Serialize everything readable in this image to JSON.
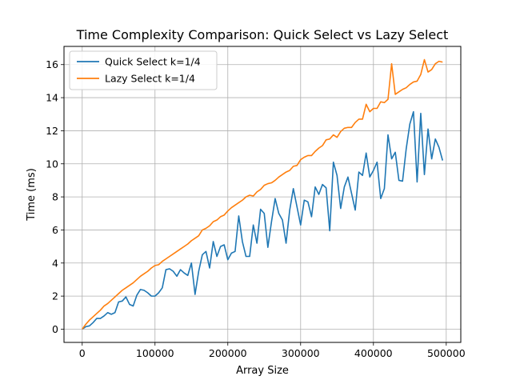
{
  "chart_data": {
    "type": "line",
    "title": "Time Complexity Comparison: Quick Select vs Lazy Select",
    "xlabel": "Array Size",
    "ylabel": "Time (ms)",
    "xlim": [
      -25000,
      520000
    ],
    "ylim": [
      -0.8,
      17.1
    ],
    "xticks": [
      0,
      100000,
      200000,
      300000,
      400000,
      500000
    ],
    "xtick_labels": [
      "0",
      "100000",
      "200000",
      "300000",
      "400000",
      "500000"
    ],
    "yticks": [
      0,
      2,
      4,
      6,
      8,
      10,
      12,
      14,
      16
    ],
    "ytick_labels": [
      "0",
      "2",
      "4",
      "6",
      "8",
      "10",
      "12",
      "14",
      "16"
    ],
    "grid": true,
    "legend_position": "upper-left",
    "series": [
      {
        "name": "Quick Select k=1/4",
        "color": "#1f77b4",
        "x": [
          0,
          5000,
          10000,
          15000,
          20000,
          25000,
          30000,
          35000,
          40000,
          45000,
          50000,
          55000,
          60000,
          65000,
          70000,
          75000,
          80000,
          85000,
          90000,
          95000,
          100000,
          105000,
          110000,
          115000,
          120000,
          125000,
          130000,
          135000,
          140000,
          145000,
          150000,
          155000,
          160000,
          165000,
          170000,
          175000,
          180000,
          185000,
          190000,
          195000,
          200000,
          205000,
          210000,
          215000,
          220000,
          225000,
          230000,
          235000,
          240000,
          245000,
          250000,
          255000,
          260000,
          265000,
          270000,
          275000,
          280000,
          285000,
          290000,
          295000,
          300000,
          305000,
          310000,
          315000,
          320000,
          325000,
          330000,
          335000,
          340000,
          345000,
          350000,
          355000,
          360000,
          365000,
          370000,
          375000,
          380000,
          385000,
          390000,
          395000,
          400000,
          405000,
          410000,
          415000,
          420000,
          425000,
          430000,
          435000,
          440000,
          445000,
          450000,
          455000,
          460000,
          465000,
          470000,
          475000,
          480000,
          485000,
          490000,
          495000
        ],
        "values": [
          0.0,
          0.15,
          0.2,
          0.4,
          0.65,
          0.65,
          0.8,
          1.0,
          0.9,
          1.0,
          1.65,
          1.7,
          1.95,
          1.5,
          1.4,
          2.05,
          2.4,
          2.35,
          2.2,
          2.0,
          2.0,
          2.2,
          2.5,
          3.6,
          3.65,
          3.5,
          3.2,
          3.6,
          3.4,
          3.25,
          4.0,
          2.1,
          3.5,
          4.5,
          4.7,
          3.7,
          5.3,
          4.4,
          5.0,
          5.1,
          4.2,
          4.6,
          4.7,
          6.85,
          5.3,
          4.4,
          4.4,
          6.3,
          5.2,
          7.25,
          7.0,
          4.95,
          6.5,
          7.9,
          7.0,
          6.6,
          5.2,
          7.2,
          8.5,
          7.4,
          6.3,
          7.8,
          7.7,
          6.8,
          8.6,
          8.15,
          8.75,
          8.55,
          5.95,
          10.1,
          9.3,
          7.3,
          8.6,
          9.2,
          8.2,
          7.2,
          9.5,
          9.3,
          10.65,
          9.2,
          9.6,
          10.1,
          7.9,
          8.5,
          11.75,
          10.3,
          10.7,
          9.0,
          8.95,
          10.9,
          12.4,
          13.15,
          8.9,
          13.05,
          9.35,
          12.1,
          10.3,
          11.5,
          11.0,
          10.2
        ]
      },
      {
        "name": "Lazy Select k=1/4",
        "color": "#ff7f0e",
        "x": [
          0,
          5000,
          10000,
          15000,
          20000,
          25000,
          30000,
          35000,
          40000,
          45000,
          50000,
          55000,
          60000,
          65000,
          70000,
          75000,
          80000,
          85000,
          90000,
          95000,
          100000,
          105000,
          110000,
          115000,
          120000,
          125000,
          130000,
          135000,
          140000,
          145000,
          150000,
          155000,
          160000,
          165000,
          170000,
          175000,
          180000,
          185000,
          190000,
          195000,
          200000,
          205000,
          210000,
          215000,
          220000,
          225000,
          230000,
          235000,
          240000,
          245000,
          250000,
          255000,
          260000,
          265000,
          270000,
          275000,
          280000,
          285000,
          290000,
          295000,
          300000,
          305000,
          310000,
          315000,
          320000,
          325000,
          330000,
          335000,
          340000,
          345000,
          350000,
          355000,
          360000,
          365000,
          370000,
          375000,
          380000,
          385000,
          390000,
          395000,
          400000,
          405000,
          410000,
          415000,
          420000,
          425000,
          430000,
          435000,
          440000,
          445000,
          450000,
          455000,
          460000,
          465000,
          470000,
          475000,
          480000,
          485000,
          490000,
          495000
        ],
        "values": [
          0.0,
          0.3,
          0.55,
          0.75,
          0.95,
          1.15,
          1.4,
          1.55,
          1.75,
          1.95,
          2.15,
          2.35,
          2.5,
          2.65,
          2.8,
          3.0,
          3.2,
          3.35,
          3.5,
          3.7,
          3.85,
          3.9,
          4.1,
          4.25,
          4.4,
          4.55,
          4.7,
          4.85,
          5.0,
          5.15,
          5.35,
          5.5,
          5.65,
          6.0,
          6.1,
          6.25,
          6.5,
          6.6,
          6.8,
          6.9,
          7.15,
          7.35,
          7.5,
          7.65,
          7.8,
          8.0,
          8.1,
          8.05,
          8.3,
          8.45,
          8.7,
          8.8,
          8.85,
          9.0,
          9.2,
          9.35,
          9.5,
          9.6,
          9.85,
          9.9,
          10.25,
          10.4,
          10.5,
          10.5,
          10.75,
          10.95,
          11.1,
          11.45,
          11.5,
          11.75,
          11.6,
          11.95,
          12.15,
          12.2,
          12.2,
          12.5,
          12.7,
          12.7,
          13.6,
          13.15,
          13.35,
          13.35,
          13.75,
          13.7,
          13.9,
          16.05,
          14.2,
          14.35,
          14.5,
          14.6,
          14.8,
          14.95,
          15.0,
          15.4,
          16.3,
          15.55,
          15.7,
          16.05,
          16.2,
          16.15
        ]
      }
    ]
  }
}
